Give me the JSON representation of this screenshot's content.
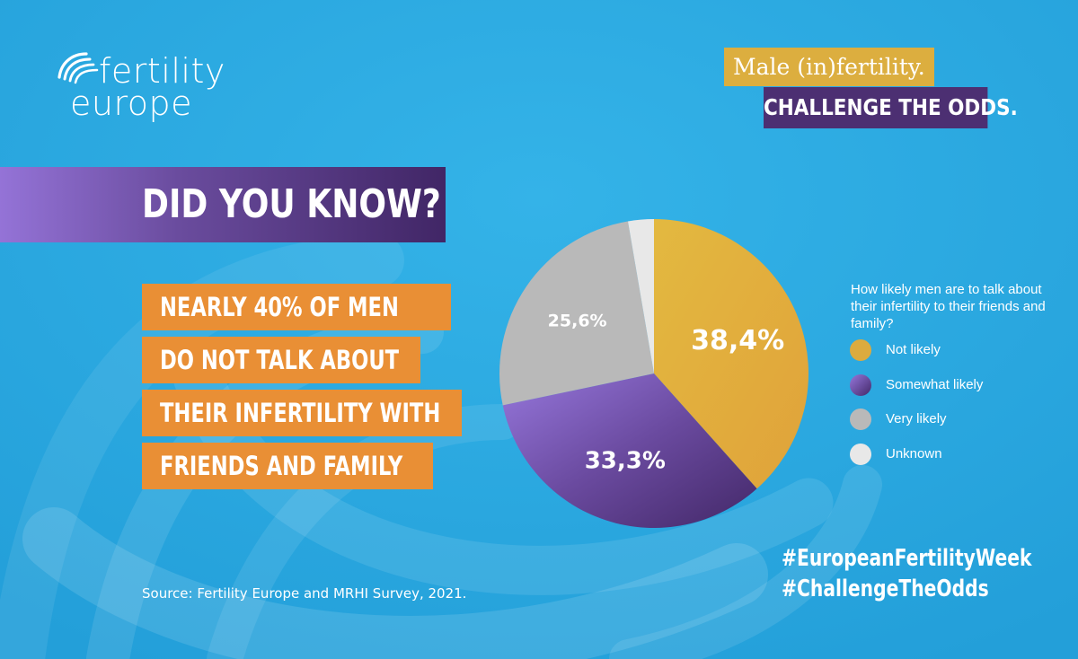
{
  "brand": {
    "logo_line1": "fertility",
    "logo_line2": "europe"
  },
  "campaign": {
    "line1": "Male (in)fertility.",
    "line2": "CHALLENGE THE ODDS."
  },
  "headline": "DID YOU KNOW?",
  "statement_lines": [
    "NEARLY 40% OF MEN",
    "DO NOT TALK ABOUT",
    "THEIR INFERTILITY WITH",
    "FRIENDS AND FAMILY"
  ],
  "source": "Source: Fertility Europe and MRHI Survey, 2021.",
  "hashtags": [
    "#EuropeanFertilityWeek",
    "#ChallengeTheOdds"
  ],
  "colors": {
    "background": "#2aa8e0",
    "gold": "#dcae3f",
    "purple_dark": "#4c2f72",
    "orange": "#e98f35",
    "grey": "#b9b9b9",
    "unknown": "#e8e8e8"
  },
  "chart_data": {
    "type": "pie",
    "title": "How likely men are to talk about their infertility to their friends and family?",
    "slices": [
      {
        "label": "Not likely",
        "value": 38.4,
        "display": "38,4%",
        "color": "#dcab3e"
      },
      {
        "label": "Somewhat likely",
        "value": 33.3,
        "display": "33,3%",
        "color": "#6c4a9e"
      },
      {
        "label": "Very likely",
        "value": 25.6,
        "display": "25,6%",
        "color": "#b9b9b9"
      },
      {
        "label": "Unknown",
        "value": 2.7,
        "display": "",
        "color": "#e8e8e8"
      }
    ],
    "legend_placement": "right"
  }
}
